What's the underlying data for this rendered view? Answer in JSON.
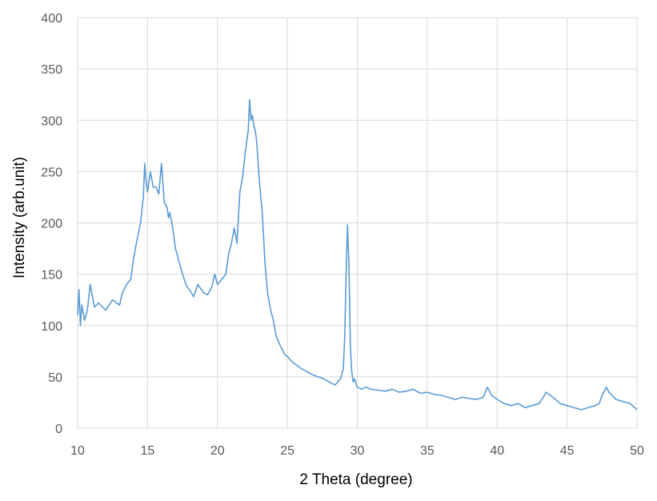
{
  "chart_data": {
    "type": "line",
    "title": "",
    "xlabel": "2 Theta (degree)",
    "ylabel": "Intensity (arb.unit)",
    "xlim": [
      10,
      50
    ],
    "ylim": [
      0,
      400
    ],
    "x_ticks": [
      10,
      15,
      20,
      25,
      30,
      35,
      40,
      45,
      50
    ],
    "y_ticks": [
      0,
      50,
      100,
      150,
      200,
      250,
      300,
      350,
      400
    ],
    "x_tick_labels": [
      "10",
      "15",
      "20",
      "25",
      "30",
      "35",
      "40",
      "45",
      "50"
    ],
    "y_tick_labels": [
      "0",
      "50",
      "100",
      "150",
      "200",
      "250",
      "300",
      "350",
      "400"
    ],
    "grid": true,
    "legend": "none",
    "line_color": "#5B9BD5",
    "grid_color": "#D9D9D9",
    "series": [
      {
        "x": [
          10,
          10.1,
          10.2,
          10.3,
          10.5,
          10.7,
          10.9,
          11.2,
          11.5,
          12,
          12.5,
          13,
          13.2,
          13.5,
          13.8,
          14,
          14.2,
          14.5,
          14.7,
          14.8,
          14.9,
          15,
          15.2,
          15.4,
          15.6,
          15.8,
          16,
          16.2,
          16.4,
          16.5,
          16.6,
          16.8,
          17,
          17.2,
          17.5,
          17.8,
          18,
          18.3,
          18.6,
          19,
          19.3,
          19.6,
          19.8,
          20,
          20.3,
          20.6,
          20.8,
          21,
          21.2,
          21.4,
          21.6,
          21.8,
          22,
          22.2,
          22.3,
          22.4,
          22.5,
          22.6,
          22.7,
          22.8,
          23,
          23.2,
          23.4,
          23.6,
          23.8,
          24,
          24.2,
          24.5,
          24.8,
          25,
          25.3,
          25.6,
          26,
          26.4,
          26.8,
          27.2,
          27.6,
          28,
          28.4,
          28.8,
          29,
          29.1,
          29.2,
          29.3,
          29.4,
          29.5,
          29.6,
          29.7,
          29.8,
          30,
          30.3,
          30.6,
          31,
          31.5,
          32,
          32.5,
          33,
          33.5,
          34,
          34.5,
          35,
          35.5,
          36,
          36.5,
          37,
          37.5,
          38,
          38.5,
          39,
          39.3,
          39.6,
          40,
          40.5,
          41,
          41.5,
          42,
          42.5,
          43,
          43.2,
          43.5,
          44,
          44.5,
          45,
          45.5,
          46,
          46.5,
          47,
          47.3,
          47.5,
          47.8,
          48,
          48.5,
          49,
          49.5,
          50
        ],
        "values": [
          110,
          135,
          100,
          120,
          105,
          115,
          140,
          118,
          122,
          115,
          125,
          120,
          132,
          140,
          145,
          165,
          180,
          200,
          225,
          258,
          240,
          230,
          250,
          235,
          235,
          228,
          258,
          220,
          215,
          205,
          210,
          195,
          175,
          165,
          150,
          138,
          135,
          128,
          140,
          132,
          130,
          138,
          150,
          140,
          145,
          150,
          170,
          180,
          195,
          180,
          230,
          245,
          270,
          290,
          320,
          300,
          305,
          295,
          290,
          280,
          240,
          210,
          160,
          130,
          115,
          105,
          90,
          80,
          72,
          70,
          65,
          62,
          58,
          55,
          52,
          50,
          48,
          45,
          42,
          48,
          58,
          90,
          150,
          198,
          160,
          80,
          55,
          45,
          48,
          40,
          38,
          40,
          38,
          37,
          36,
          38,
          35,
          36,
          38,
          34,
          35,
          33,
          32,
          30,
          28,
          30,
          29,
          28,
          30,
          40,
          32,
          28,
          24,
          22,
          24,
          20,
          22,
          24,
          28,
          35,
          30,
          24,
          22,
          20,
          18,
          20,
          22,
          24,
          32,
          40,
          35,
          28,
          26,
          24,
          18
        ]
      }
    ]
  }
}
